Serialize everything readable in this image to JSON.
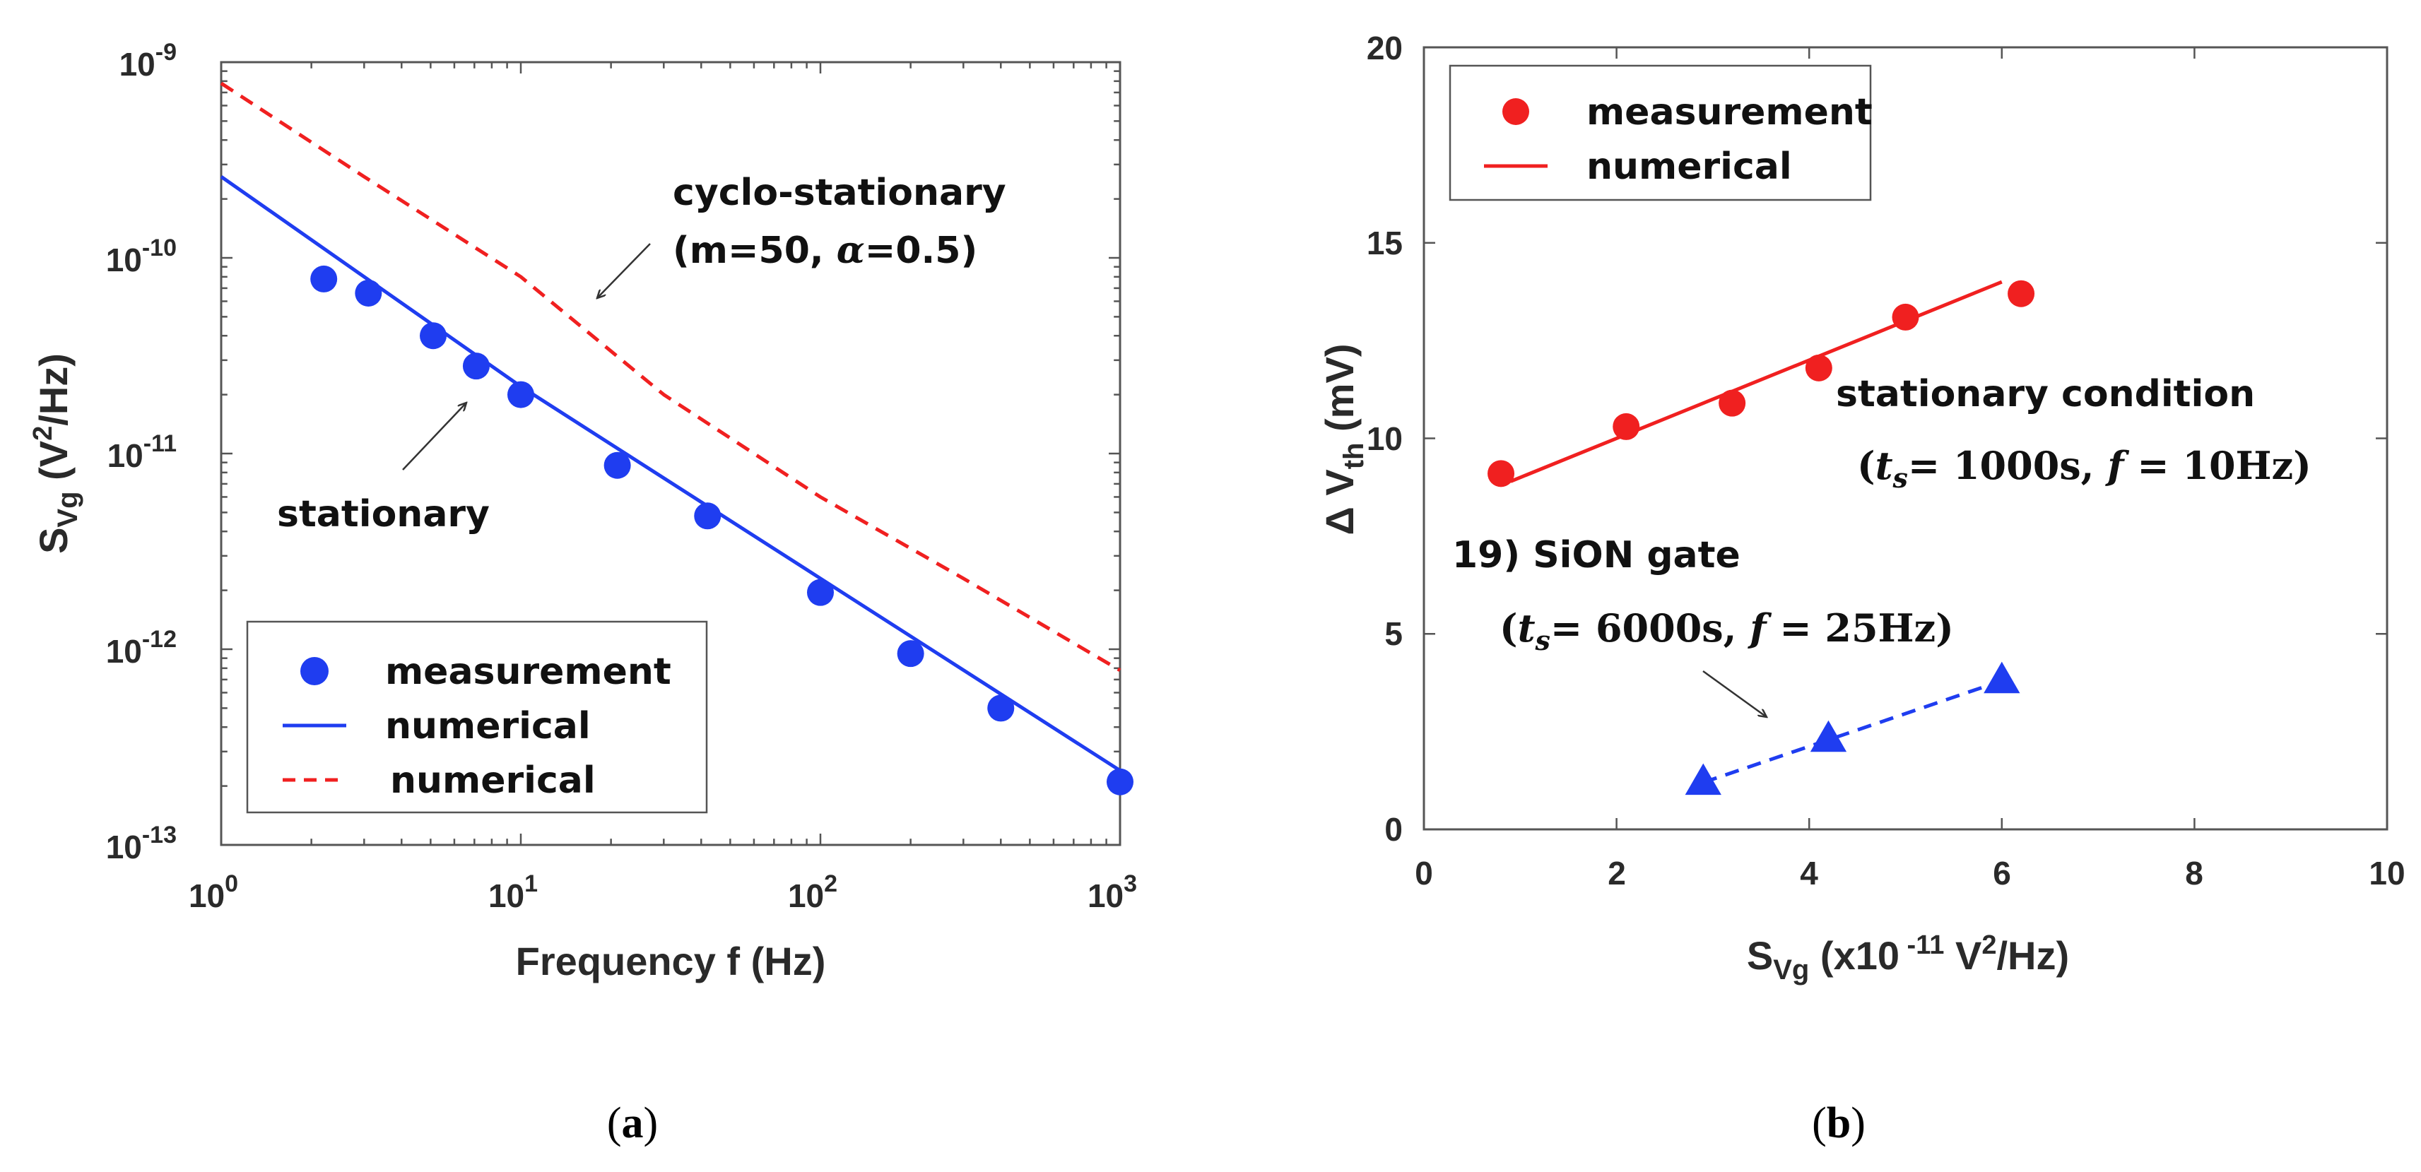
{
  "colors": {
    "blue": "#1f3df0",
    "red": "#f02020",
    "frame": "#555555",
    "text": "#2a2a2a"
  },
  "chart_data": [
    {
      "id": "a",
      "type": "scatter",
      "caption_letter": "a",
      "xlabel": "Frequency f (Hz)",
      "ylabel": {
        "base": "S",
        "sub": "Vg",
        "unit_pre": " (V",
        "sup": "2",
        "unit_post": "/Hz)"
      },
      "xscale": "log",
      "yscale": "log",
      "xlim": [
        1,
        1000
      ],
      "ylim": [
        1e-13,
        1e-09
      ],
      "xticks": [
        {
          "base": "10",
          "exp": "0"
        },
        {
          "base": "10",
          "exp": "1"
        },
        {
          "base": "10",
          "exp": "2"
        },
        {
          "base": "10",
          "exp": "3"
        }
      ],
      "yticks": [
        {
          "base": "10",
          "exp": "-13"
        },
        {
          "base": "10",
          "exp": "-12"
        },
        {
          "base": "10",
          "exp": "-11"
        },
        {
          "base": "10",
          "exp": "-10"
        },
        {
          "base": "10",
          "exp": "-9"
        }
      ],
      "series": [
        {
          "name": "measurement",
          "kind": "markers",
          "marker": "circle",
          "color": "#1f3df0",
          "x": [
            2.2,
            3.1,
            5.1,
            7.1,
            10,
            21,
            42,
            100,
            200,
            400,
            1000
          ],
          "y": [
            7.8e-11,
            6.6e-11,
            4e-11,
            2.8e-11,
            2e-11,
            8.7e-12,
            4.8e-12,
            1.95e-12,
            9.5e-13,
            5e-13,
            2.1e-13
          ]
        },
        {
          "name": "numerical",
          "kind": "line",
          "dash": "solid",
          "color": "#1f3df0",
          "x": [
            1,
            10,
            100,
            1000
          ],
          "y": [
            2.6e-10,
            2.2e-11,
            2.3e-12,
            2.4e-13
          ]
        },
        {
          "name": "numerical",
          "kind": "line",
          "dash": "dashed",
          "color": "#f02020",
          "x": [
            1,
            3,
            10,
            30,
            100,
            300,
            1000
          ],
          "y": [
            7.8e-10,
            2.6e-10,
            8e-11,
            2e-11,
            6e-12,
            2.3e-12,
            7.8e-13
          ]
        }
      ],
      "legend": {
        "placement": "bottom-left",
        "entries": [
          "measurement",
          "numerical",
          "numerical"
        ]
      },
      "annotations": [
        {
          "text": "cyclo-stationary"
        },
        {
          "text_pre": "(m=50, ",
          "symbol": "α",
          "text_post": "=0.5)"
        },
        {
          "text": "stationary"
        }
      ]
    },
    {
      "id": "b",
      "type": "scatter",
      "caption_letter": "b",
      "xlabel": {
        "base": "S",
        "sub": "Vg",
        "unit_pre": " (x10",
        "sup": " -11",
        "unit_post": " V",
        "sup2": "2",
        "unit_end": "/Hz)"
      },
      "ylabel": {
        "base": "Δ V",
        "sub": "th",
        "unit": " (mV)"
      },
      "xscale": "linear",
      "yscale": "linear",
      "xlim": [
        0,
        10
      ],
      "ylim": [
        0,
        20
      ],
      "xticks": [
        "0",
        "2",
        "4",
        "6",
        "8",
        "10"
      ],
      "yticks": [
        "0",
        "5",
        "10",
        "15",
        "20"
      ],
      "series": [
        {
          "name": "measurement",
          "kind": "markers",
          "marker": "circle",
          "color": "#f02020",
          "x": [
            0.8,
            2.1,
            3.2,
            4.1,
            5.0,
            6.2
          ],
          "y": [
            9.1,
            10.3,
            10.9,
            11.8,
            13.1,
            13.7
          ]
        },
        {
          "name": "numerical",
          "kind": "line",
          "dash": "solid",
          "color": "#f02020",
          "x": [
            0.9,
            6.0
          ],
          "y": [
            8.9,
            14.0
          ]
        },
        {
          "name": "SiON gate",
          "kind": "markers",
          "marker": "triangle",
          "color": "#1f3df0",
          "x": [
            2.9,
            4.2,
            6.0
          ],
          "y": [
            1.2,
            2.3,
            3.8
          ]
        },
        {
          "name": "SiON gate fit",
          "kind": "line",
          "dash": "dashed",
          "color": "#1f3df0",
          "x": [
            2.9,
            6.0
          ],
          "y": [
            1.2,
            3.8
          ]
        }
      ],
      "legend": {
        "placement": "top-left",
        "entries": [
          "measurement",
          "numerical"
        ]
      },
      "annotations": [
        {
          "text": "stationary condition"
        },
        {
          "ts_val": "= 1000s,",
          "f_val": "= 10Hz)"
        },
        {
          "text": "19) SiON gate"
        },
        {
          "ts_val": "= 6000s,",
          "f_val": "= 25Hz)"
        }
      ],
      "math": {
        "open": "(",
        "t": "t",
        "s": "s",
        "f": "f"
      }
    }
  ]
}
